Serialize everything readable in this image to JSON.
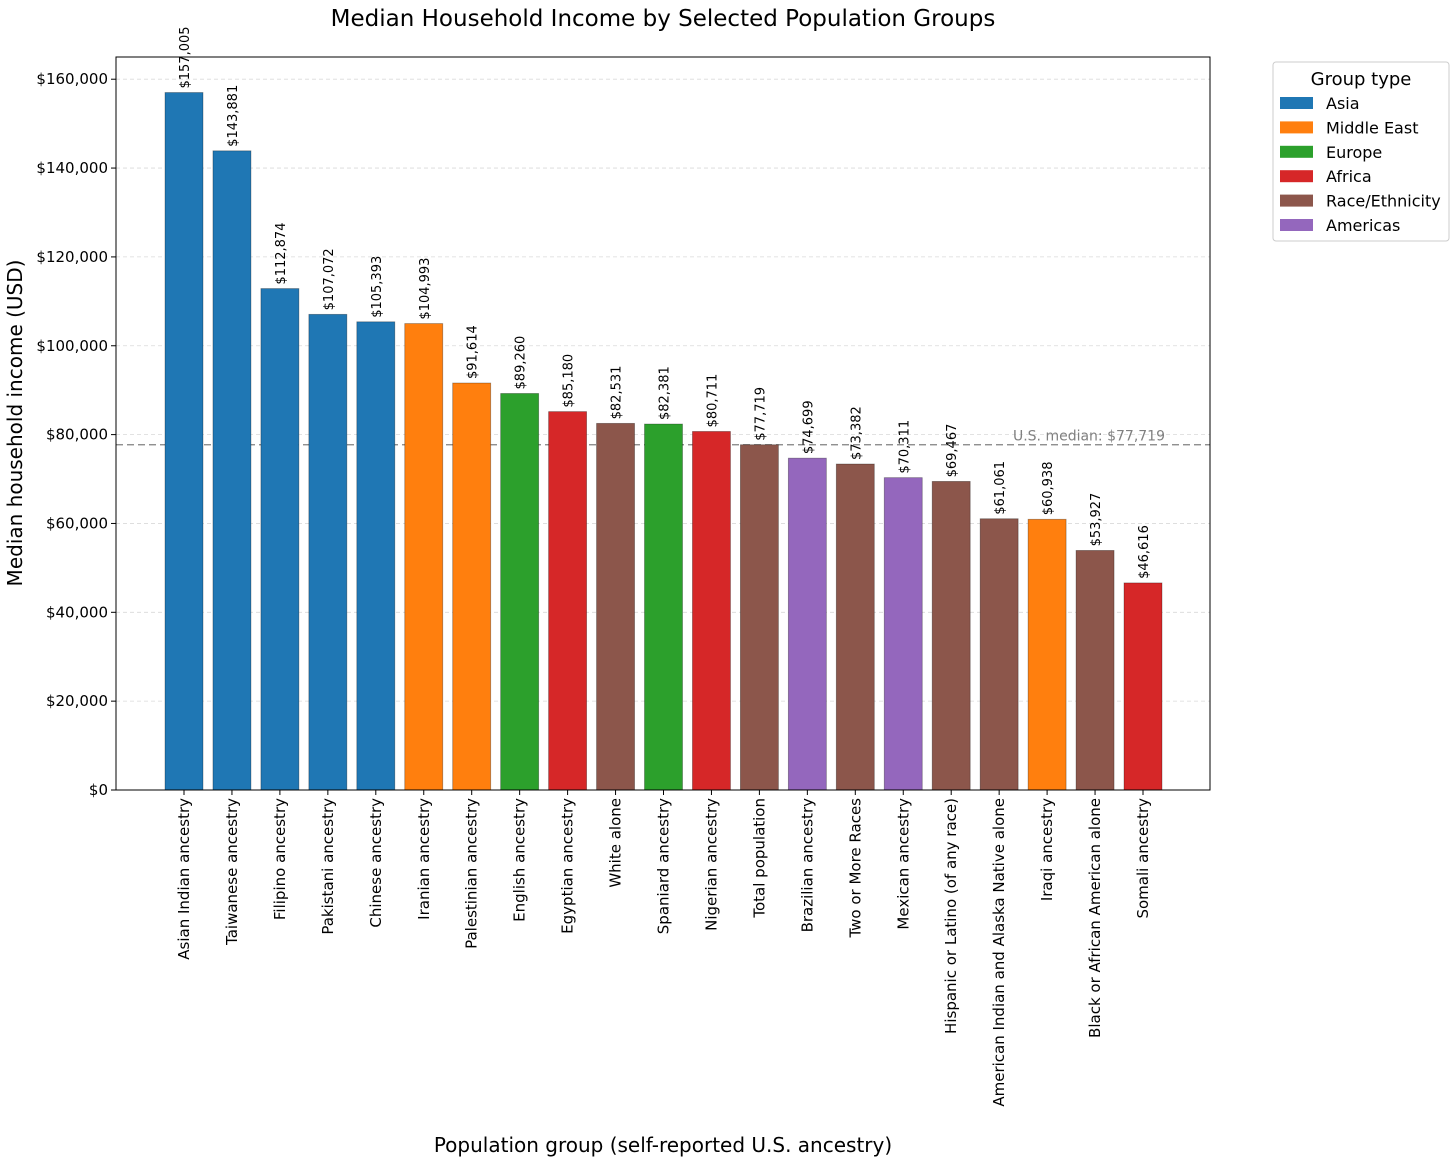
{
  "chart_data": {
    "type": "bar",
    "title": "Median Household Income by Selected Population Groups",
    "xlabel": "Population group (self-reported U.S. ancestry)",
    "ylabel": "Median household income (USD)",
    "ylim": [
      0,
      165000
    ],
    "yticks": [
      0,
      20000,
      40000,
      60000,
      80000,
      100000,
      120000,
      140000,
      160000
    ],
    "ytick_labels": [
      "$0",
      "$20,000",
      "$40,000",
      "$60,000",
      "$80,000",
      "$100,000",
      "$120,000",
      "$140,000",
      "$160,000"
    ],
    "grid": "horizontal dashed",
    "categories": [
      "Asian Indian ancestry",
      "Taiwanese ancestry",
      "Filipino ancestry",
      "Pakistani ancestry",
      "Chinese ancestry",
      "Iranian ancestry",
      "Palestinian ancestry",
      "English ancestry",
      "Egyptian ancestry",
      "White alone",
      "Spaniard ancestry",
      "Nigerian ancestry",
      "Total population",
      "Brazilian ancestry",
      "Two or More Races",
      "Mexican ancestry",
      "Hispanic or Latino (of any race)",
      "American Indian and Alaska Native alone",
      "Iraqi ancestry",
      "Black or African American alone",
      "Somali ancestry"
    ],
    "values": [
      157005,
      143881,
      112874,
      107072,
      105393,
      104993,
      91614,
      89260,
      85180,
      82531,
      82381,
      80711,
      77719,
      74699,
      73382,
      70311,
      69467,
      61061,
      60938,
      53927,
      46616
    ],
    "value_labels": [
      "$157,005",
      "$143,881",
      "$112,874",
      "$107,072",
      "$105,393",
      "$104,993",
      "$91,614",
      "$89,260",
      "$85,180",
      "$82,531",
      "$82,381",
      "$80,711",
      "$77,719",
      "$74,699",
      "$73,382",
      "$70,311",
      "$69,467",
      "$61,061",
      "$60,938",
      "$53,927",
      "$46,616"
    ],
    "groups": [
      "Asia",
      "Asia",
      "Asia",
      "Asia",
      "Asia",
      "Middle East",
      "Middle East",
      "Europe",
      "Africa",
      "Race/Ethnicity",
      "Europe",
      "Africa",
      "Race/Ethnicity",
      "Americas",
      "Race/Ethnicity",
      "Americas",
      "Race/Ethnicity",
      "Race/Ethnicity",
      "Middle East",
      "Race/Ethnicity",
      "Africa"
    ],
    "legend": {
      "title": "Group type",
      "placement": "outside-top-right",
      "entries": [
        {
          "name": "Asia",
          "color": "#1f77b4"
        },
        {
          "name": "Middle East",
          "color": "#ff7f0e"
        },
        {
          "name": "Europe",
          "color": "#2ca02c"
        },
        {
          "name": "Africa",
          "color": "#d62728"
        },
        {
          "name": "Race/Ethnicity",
          "color": "#8c564b"
        },
        {
          "name": "Americas",
          "color": "#9467bd"
        }
      ]
    },
    "reference_line": {
      "value": 77719,
      "label": "U.S. median: $77,719",
      "color": "#808080",
      "style": "dashed"
    }
  }
}
